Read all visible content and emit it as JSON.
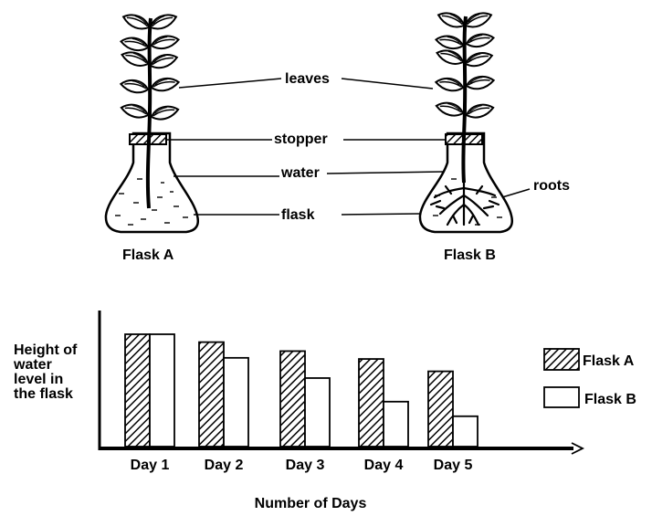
{
  "diagram": {
    "labels": {
      "leaves": "leaves",
      "stopper": "stopper",
      "water": "water",
      "flask": "flask",
      "roots": "roots"
    },
    "flask_a_caption": "Flask A",
    "flask_b_caption": "Flask B"
  },
  "chart_data": {
    "type": "bar",
    "ylabel_lines": [
      "Height of",
      "water",
      "level in",
      "the flask"
    ],
    "xlabel": "Number of Days",
    "categories": [
      "Day 1",
      "Day 2",
      "Day 3",
      "Day 4",
      "Day 5"
    ],
    "series": [
      {
        "name": "Flask A",
        "pattern": "diagonal-hatch",
        "values": [
          100,
          93,
          85,
          78,
          67
        ]
      },
      {
        "name": "Flask B",
        "pattern": "empty",
        "values": [
          100,
          79,
          61,
          40,
          27
        ]
      }
    ],
    "ylim": [
      0,
      100
    ],
    "legend_placement": "right",
    "grid": false
  }
}
